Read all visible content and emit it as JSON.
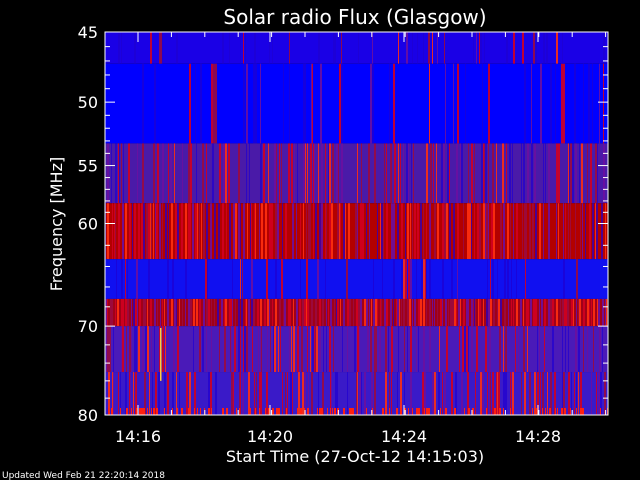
{
  "chart_data": {
    "type": "heatmap",
    "title": "Solar radio Flux (Glasgow)",
    "xlabel": "Start Time (27-Oct-12 14:15:03)",
    "ylabel": "Frequency [MHz]",
    "x_tick_labels": [
      "14:16",
      "14:20",
      "14:24",
      "14:28"
    ],
    "y_tick_labels": [
      "45",
      "50",
      "55",
      "60",
      "70",
      "80"
    ],
    "y_axis_scale": "log",
    "ylim": [
      45,
      80
    ],
    "colormap": [
      "#0000ff",
      "#ff2000"
    ],
    "bands": [
      {
        "freq_start": 45,
        "freq_end": 47.2,
        "red_density": 0.1,
        "base": "#1a00e6"
      },
      {
        "freq_start": 47.2,
        "freq_end": 53.2,
        "red_density": 0.12,
        "base": "#0000ff"
      },
      {
        "freq_start": 53.2,
        "freq_end": 58.2,
        "red_density": 0.45,
        "base": "#4a1aa8"
      },
      {
        "freq_start": 58.2,
        "freq_end": 63.3,
        "red_density": 0.7,
        "base": "#b30000"
      },
      {
        "freq_start": 63.3,
        "freq_end": 67.2,
        "red_density": 0.1,
        "base": "#1010f0"
      },
      {
        "freq_start": 67.2,
        "freq_end": 70.0,
        "red_density": 0.95,
        "base": "#a00018"
      },
      {
        "freq_start": 70.0,
        "freq_end": 75.0,
        "red_density": 0.45,
        "base": "#4a1ab8"
      },
      {
        "freq_start": 75.0,
        "freq_end": 80.0,
        "red_density": 0.4,
        "base": "#3a1ac8"
      }
    ]
  },
  "footer": "Updated Wed Feb 21 22:20:14 2018"
}
